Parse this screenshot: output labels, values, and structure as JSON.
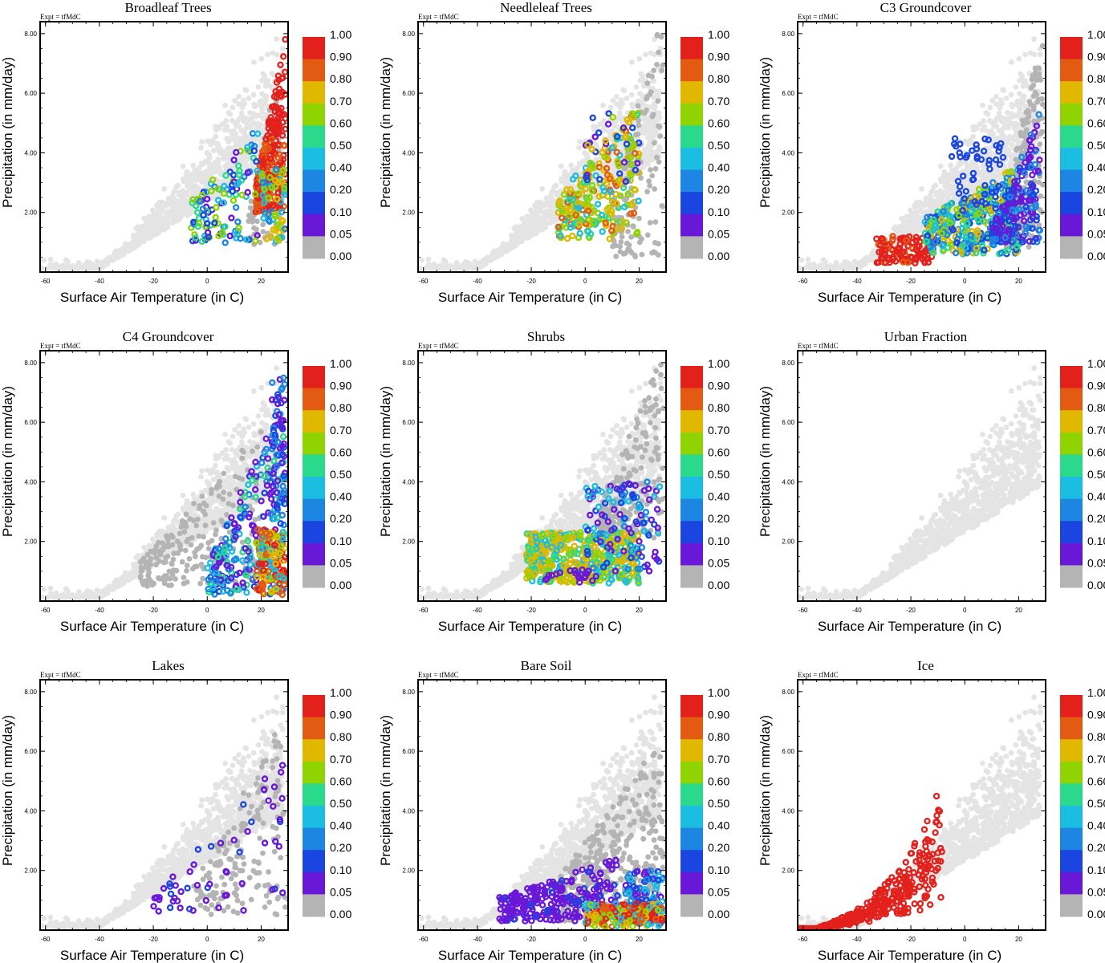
{
  "figure": {
    "expt_label": "Expt = tfMdC",
    "xlabel": "Surface Air Temperature (in C)",
    "ylabel": "Precipitation (in mm/day)",
    "x_ticks": [
      "-60",
      "-40",
      "-20",
      "0",
      "20"
    ],
    "y_ticks": [
      "2.00",
      "4.00",
      "6.00",
      "8.00"
    ],
    "colorbar_labels": [
      "1.00",
      "0.90",
      "0.80",
      "0.70",
      "0.60",
      "0.50",
      "0.40",
      "0.20",
      "0.10",
      "0.05",
      "0.00"
    ],
    "colors": {
      "background_points": "#e4e4e4",
      "zero_fraction": "#b4b4b4",
      "colorbar": [
        "#e3211c",
        "#e35a12",
        "#e0b800",
        "#8fd400",
        "#2bd98c",
        "#1bbde0",
        "#1c86e2",
        "#1a45e0",
        "#6a18d8",
        "#b4b4b4"
      ]
    }
  },
  "chart_data": [
    {
      "type": "scatter",
      "title": "Broadleaf Trees",
      "xlim": [
        -62,
        30
      ],
      "ylim": [
        0,
        8.4
      ],
      "xlabel": "Surface Air Temperature (in C)",
      "ylabel": "Precipitation (in mm/day)",
      "color_by": "fraction",
      "dominant_fraction": "0.80-1.00 near 20-28 C, 0.05-0.40 near -5-15 C"
    },
    {
      "type": "scatter",
      "title": "Needleleaf Trees",
      "xlim": [
        -62,
        30
      ],
      "ylim": [
        0,
        8.4
      ],
      "xlabel": "Surface Air Temperature (in C)",
      "ylabel": "Precipitation (in mm/day)",
      "color_by": "fraction",
      "dominant_fraction": "0.40-0.70 between -10 and 20 C"
    },
    {
      "type": "scatter",
      "title": "C3 Groundcover",
      "xlim": [
        -62,
        30
      ],
      "ylim": [
        0,
        8.4
      ],
      "xlabel": "Surface Air Temperature (in C)",
      "ylabel": "Precipitation (in mm/day)",
      "color_by": "fraction",
      "dominant_fraction": "0.90-1.00 near -30 to -10 C; 0.05-0.40 elsewhere"
    },
    {
      "type": "scatter",
      "title": "C4 Groundcover",
      "xlim": [
        -62,
        30
      ],
      "ylim": [
        0,
        8.4
      ],
      "xlabel": "Surface Air Temperature (in C)",
      "ylabel": "Precipitation (in mm/day)",
      "color_by": "fraction",
      "dominant_fraction": "0.05 mostly; 0.80-0.90 near 20-28 C at low precipitation"
    },
    {
      "type": "scatter",
      "title": "Shrubs",
      "xlim": [
        -62,
        30
      ],
      "ylim": [
        0,
        8.4
      ],
      "xlabel": "Surface Air Temperature (in C)",
      "ylabel": "Precipitation (in mm/day)",
      "color_by": "fraction",
      "dominant_fraction": "0.60-0.70 between -20 and 20 C"
    },
    {
      "type": "scatter",
      "title": "Urban Fraction",
      "xlim": [
        -62,
        30
      ],
      "ylim": [
        0,
        8.4
      ],
      "xlabel": "Surface Air Temperature (in C)",
      "ylabel": "Precipitation (in mm/day)",
      "color_by": "fraction",
      "dominant_fraction": "none"
    },
    {
      "type": "scatter",
      "title": "Lakes",
      "xlim": [
        -62,
        30
      ],
      "ylim": [
        0,
        8.4
      ],
      "xlabel": "Surface Air Temperature (in C)",
      "ylabel": "Precipitation (in mm/day)",
      "color_by": "fraction",
      "dominant_fraction": "0.05-0.10 scattered"
    },
    {
      "type": "scatter",
      "title": "Bare Soil",
      "xlim": [
        -62,
        30
      ],
      "ylim": [
        0,
        8.4
      ],
      "xlabel": "Surface Air Temperature (in C)",
      "ylabel": "Precipitation (in mm/day)",
      "color_by": "fraction",
      "dominant_fraction": "0.05 -30 to 0 C; 0.90-1.00 near 0-28 C at very low precipitation"
    },
    {
      "type": "scatter",
      "title": "Ice",
      "xlim": [
        -62,
        30
      ],
      "ylim": [
        0,
        8.4
      ],
      "xlabel": "Surface Air Temperature (in C)",
      "ylabel": "Precipitation (in mm/day)",
      "color_by": "fraction",
      "dominant_fraction": "1.00 from -62 to -8 C"
    }
  ]
}
